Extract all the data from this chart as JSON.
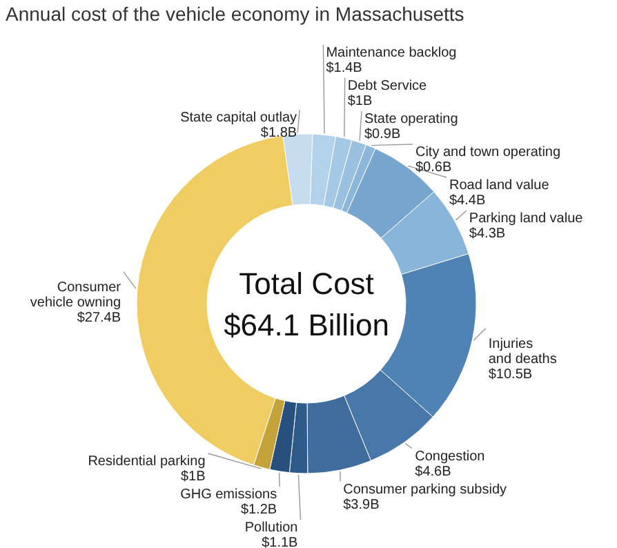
{
  "chart_data": {
    "type": "donut",
    "title": "Annual cost of the vehicle economy in Massachusetts",
    "categories": [
      "State capital outlay",
      "Maintenance backlog",
      "Debt Service",
      "State operating",
      "City and town operating",
      "Road land value",
      "Parking land value",
      "Injuries and deaths",
      "Congestion",
      "Consumer parking subsidy",
      "Pollution",
      "GHG emissions",
      "Residential parking",
      "Consumer vehicle owning"
    ],
    "values": [
      1.8,
      1.4,
      1,
      0.9,
      0.6,
      4.4,
      4.3,
      10.5,
      4.6,
      3.9,
      1.1,
      1.2,
      1,
      27.4
    ],
    "value_labels": [
      "$1.8B",
      "$1.4B",
      "$1B",
      "$0.9B",
      "$0.6B",
      "$4.4B",
      "$4.3B",
      "$10.5B",
      "$4.6B",
      "$3.9B",
      "$1.1B",
      "$1.2B",
      "$1B",
      "$27.4B"
    ],
    "colors": [
      "#c6ddef",
      "#b2d1ea",
      "#a5c8e4",
      "#9bc1e0",
      "#8cb7da",
      "#77a5ce",
      "#8ab5da",
      "#4f82b5",
      "#4878aa",
      "#3f6c9d",
      "#2f5b8a",
      "#27507f",
      "#c6a23a",
      "#f0cd62"
    ],
    "annotations": [
      "Total Cost",
      "$64.1 Billion"
    ]
  }
}
